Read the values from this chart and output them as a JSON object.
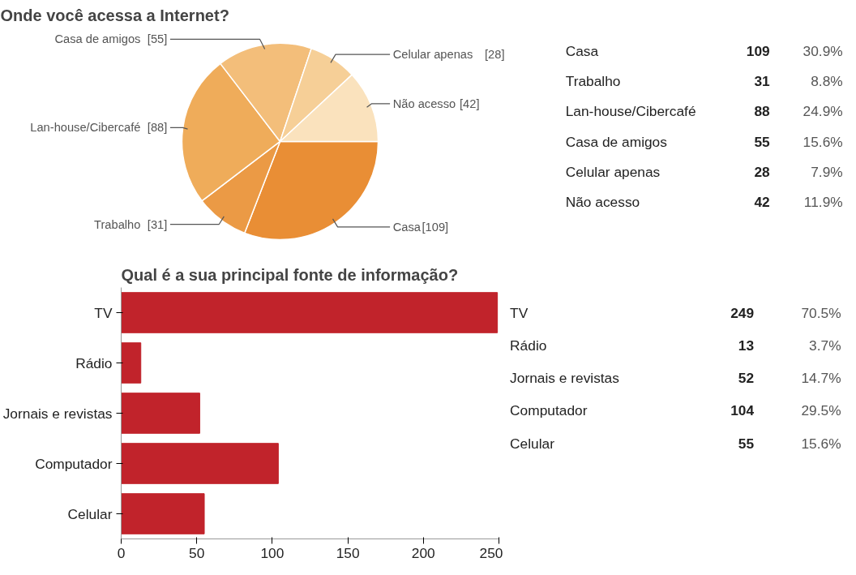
{
  "chart_data": [
    {
      "type": "pie",
      "title": "Onde você acessa a Internet?",
      "categories": [
        "Casa",
        "Trabalho",
        "Lan-house/Cibercafé",
        "Casa de amigos",
        "Celular apenas",
        "Não acesso"
      ],
      "values": [
        109,
        31,
        88,
        55,
        28,
        42
      ],
      "colors": [
        "#e98e35",
        "#eb9a45",
        "#efac5a",
        "#f3be7a",
        "#f6cf97",
        "#fae2bd"
      ],
      "value_labels": [
        "[109]",
        "[31]",
        "[88]",
        "[55]",
        "[28]",
        "[42]"
      ]
    },
    {
      "type": "other",
      "annotations": [
        "Casa",
        "109",
        "30.9%",
        "Trabalho",
        "31",
        "8.8%",
        "Lan-house/Cibercafé",
        "88",
        "24.9%",
        "Casa de amigos",
        "55",
        "15.6%",
        "Celular apenas",
        "28",
        "7.9%",
        "Não acesso",
        "42",
        "11.9%"
      ]
    },
    {
      "type": "bar",
      "orientation": "horizontal",
      "title": "Qual é a sua principal fonte de informação?",
      "categories": [
        "TV",
        "Rádio",
        "Jornais e revistas",
        "Computador",
        "Celular"
      ],
      "values": [
        249,
        13,
        52,
        104,
        55
      ],
      "color": "#c1232b",
      "xlim": [
        0,
        250
      ],
      "xticks": [
        0,
        50,
        100,
        150,
        200,
        250
      ],
      "grid": false
    },
    {
      "type": "other",
      "annotations": [
        "TV",
        "249",
        "70.5%",
        "Rádio",
        "13",
        "3.7%",
        "Jornais e revistas",
        "52",
        "14.7%",
        "Computador",
        "104",
        "29.5%",
        "Celular",
        "55",
        "15.6%"
      ]
    }
  ]
}
